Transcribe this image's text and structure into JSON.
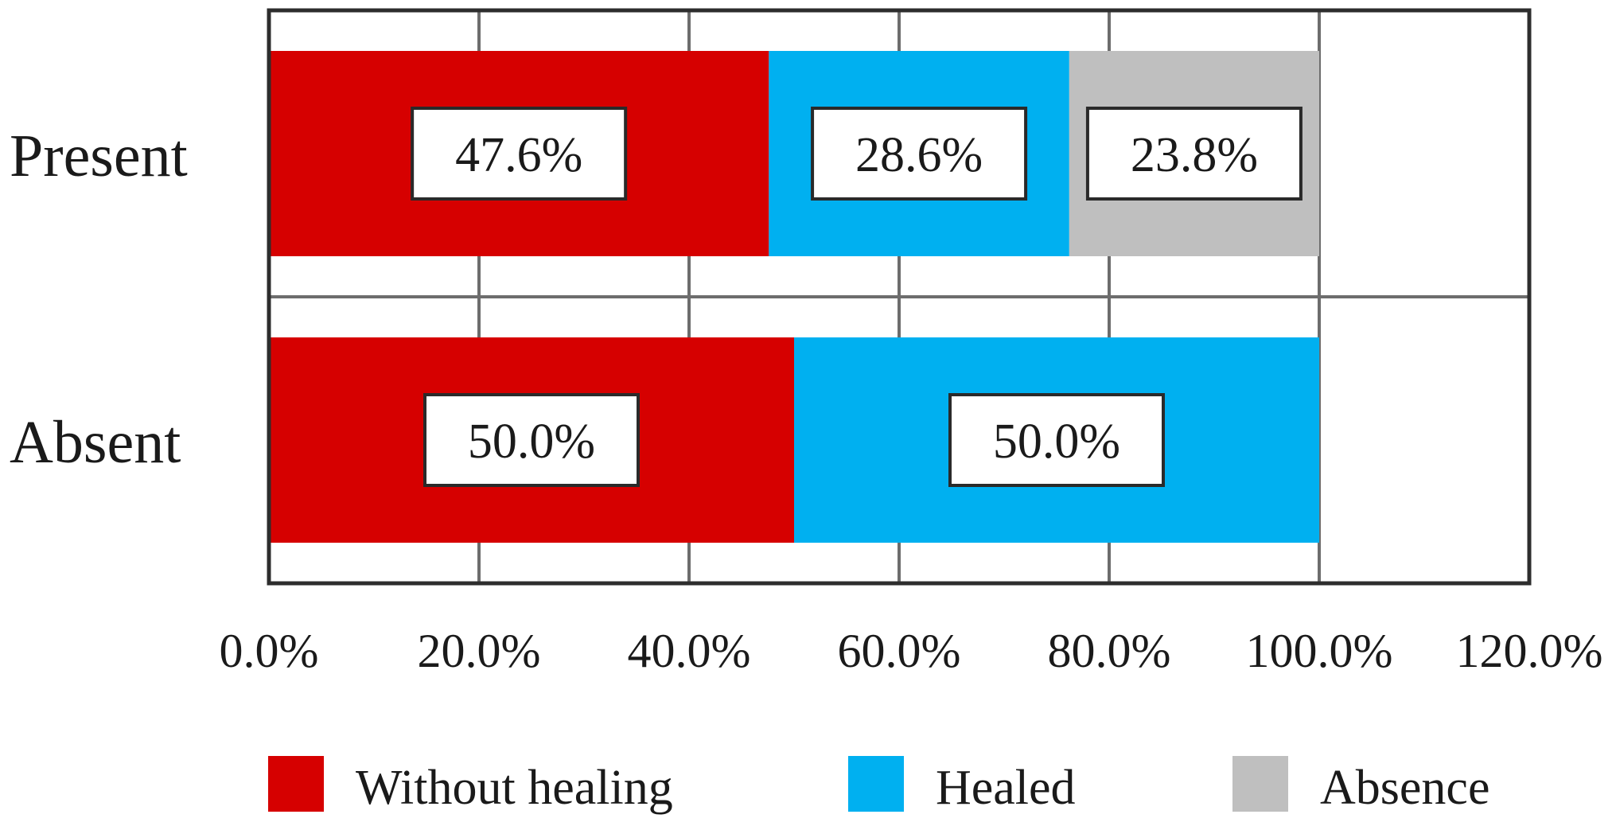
{
  "chart_data": {
    "type": "bar",
    "orientation": "horizontal",
    "stacked": true,
    "categories": [
      "Present",
      "Absent"
    ],
    "series": [
      {
        "name": "Without healing",
        "values": [
          47.6,
          50.0
        ],
        "labels": [
          "47.6%",
          "50.0%"
        ],
        "color": "#d60000"
      },
      {
        "name": "Healed",
        "values": [
          28.6,
          50.0
        ],
        "labels": [
          "28.6%",
          "50.0%"
        ],
        "color": "#00b0f0"
      },
      {
        "name": "Absence",
        "values": [
          23.8,
          0
        ],
        "labels": [
          "23.8%",
          ""
        ],
        "color": "#bfbfbf"
      }
    ],
    "xlim": [
      0,
      120
    ],
    "xticks": [
      0,
      20,
      40,
      60,
      80,
      100,
      120
    ],
    "xtick_labels": [
      "0.0%",
      "20.0%",
      "40.0%",
      "60.0%",
      "80.0%",
      "100.0%",
      "120.0%"
    ],
    "grid": true,
    "legend_position": "bottom",
    "title": "",
    "xlabel": "",
    "ylabel": ""
  }
}
